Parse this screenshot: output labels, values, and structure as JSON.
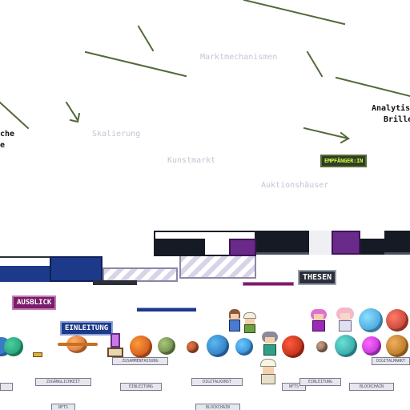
{
  "concepts": {
    "marktmechanismen": "Marktmechanismen",
    "skalierung": "Skalierung",
    "kunstmarkt": "Kunstmarkt",
    "auktionshaeuser": "Auktionshäuser"
  },
  "side_text": {
    "left_line1": "che",
    "left_line2": "e",
    "right_line1": "Analytis",
    "right_line2": "Brille"
  },
  "badges": {
    "empfaenger": "EMPFÄNGER:IN",
    "thesen": "THESEN",
    "ausblick": "AUSBLICK",
    "einleitung": "EINLEITUNG"
  },
  "tags": {
    "t1": "ZUSAMMENFASSUNG",
    "t2": "DIGITALMARKT",
    "t3": "ZUGÄNGLICHKEIT",
    "t4": "EINLEITUNG",
    "t5": "DIGITALKUNST",
    "t6": "NFTS",
    "t7": "EINLEITUNG",
    "t8": "BLOCKCHAIN",
    "t9": "NFTS",
    "t10": "BLOCKCHAIN"
  },
  "colors": {
    "arrow": "#52693a",
    "concept_text": "#c4c4d6",
    "navy": "#1d3a8a",
    "purple": "#6a2a8a"
  }
}
